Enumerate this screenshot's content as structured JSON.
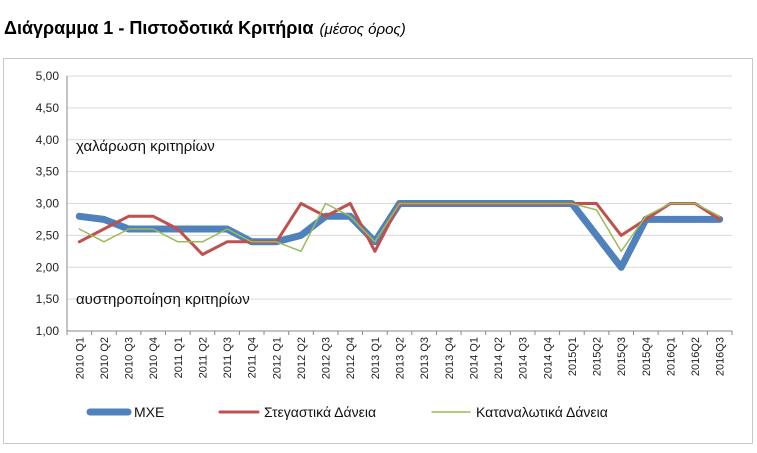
{
  "header": {
    "title": "Διάγραμμα 1 - Πιστοδοτικά Κριτήρια",
    "subtitle": "(μέσος όρος)"
  },
  "chart_data": {
    "type": "line",
    "categories": [
      "2010 Q1",
      "2010 Q2",
      "2010 Q3",
      "2010 Q4",
      "2011 Q1",
      "2011 Q2",
      "2011 Q3",
      "2011 Q4",
      "2012 Q1",
      "2012 Q2",
      "2012 Q3",
      "2012 Q4",
      "2013 Q1",
      "2013 Q2",
      "2013 Q3",
      "2013 Q4",
      "2014 Q1",
      "2014 Q2",
      "2014 Q3",
      "2014 Q4",
      "2015Q1",
      "2015Q2",
      "2015Q3",
      "2015Q4",
      "2016Q1",
      "2016Q2",
      "2016Q3"
    ],
    "series": [
      {
        "name": "ΜΧΕ",
        "color": "#4f81bd",
        "width": 7,
        "values": [
          2.8,
          2.75,
          2.6,
          2.6,
          2.6,
          2.6,
          2.6,
          2.4,
          2.4,
          2.5,
          2.8,
          2.8,
          2.4,
          3.0,
          3.0,
          3.0,
          3.0,
          3.0,
          3.0,
          3.0,
          3.0,
          2.5,
          2.0,
          2.75,
          2.75,
          2.75,
          2.75
        ]
      },
      {
        "name": "Στεγαστικά Δάνεια",
        "color": "#c0504d",
        "width": 3,
        "values": [
          2.4,
          2.6,
          2.8,
          2.8,
          2.6,
          2.2,
          2.4,
          2.4,
          2.4,
          3.0,
          2.8,
          3.0,
          2.25,
          3.0,
          3.0,
          3.0,
          3.0,
          3.0,
          3.0,
          3.0,
          3.0,
          3.0,
          2.5,
          2.75,
          3.0,
          3.0,
          2.75
        ]
      },
      {
        "name": "Καταναλωτικά Δάνεια",
        "color": "#9bbb59",
        "width": 1.5,
        "values": [
          2.6,
          2.4,
          2.6,
          2.6,
          2.4,
          2.4,
          2.6,
          2.4,
          2.4,
          2.25,
          3.0,
          2.8,
          2.4,
          3.0,
          3.0,
          3.0,
          3.0,
          3.0,
          3.0,
          3.0,
          3.0,
          2.9,
          2.25,
          2.8,
          3.0,
          3.0,
          2.8
        ]
      }
    ],
    "y_ticks": [
      "1,00",
      "1,50",
      "2,00",
      "2,50",
      "3,00",
      "3,50",
      "4,00",
      "4,50",
      "5,00"
    ],
    "ylim": [
      1.0,
      5.0
    ],
    "grid": true,
    "legend_position": "bottom",
    "annotations": {
      "top": "χαλάρωση κριτηρίων",
      "bottom": "αυστηροποίηση κριτηρίων"
    }
  }
}
